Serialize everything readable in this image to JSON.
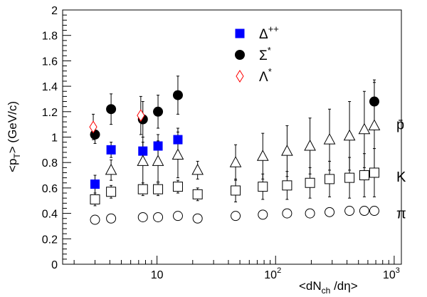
{
  "chart_data": {
    "type": "scatter",
    "xscale": "log",
    "xlim": [
      1.6,
      1150
    ],
    "ylim": [
      0,
      2
    ],
    "y_ticks": [
      0,
      0.2,
      0.4,
      0.6,
      0.8,
      1,
      1.2,
      1.4,
      1.6,
      1.8,
      2
    ],
    "y_tick_labels": [
      "0",
      "0.2",
      "0.4",
      "0.6",
      "0.8",
      "1",
      "1.2",
      "1.4",
      "1.6",
      "1.8",
      "2"
    ],
    "x_major_ticks": [
      10,
      100,
      1000
    ],
    "x_tick_label_bases": [
      "10",
      "10",
      "10"
    ],
    "x_tick_label_exps": [
      "",
      "2",
      "3"
    ],
    "xlabel": {
      "prefix": "<dN",
      "sub": "ch",
      "suffix": " /dη>"
    },
    "ylabel": {
      "prefix": "<p",
      "sub": "T",
      "suffix": "> (GeV/c)"
    },
    "grid": false,
    "legend_position": "top-center",
    "series": [
      {
        "name_base": "Δ",
        "name_sup": "++",
        "marker": "filled-square",
        "color": "#0000ff",
        "points": [
          [
            3.0,
            0.63,
            0.07
          ],
          [
            4.1,
            0.9,
            0.06
          ],
          [
            7.6,
            0.89,
            0.07
          ],
          [
            10.2,
            0.93,
            0.09
          ],
          [
            15.0,
            0.98,
            0.09
          ]
        ]
      },
      {
        "name_base": "Σ",
        "name_sup": "*",
        "marker": "filled-circle",
        "color": "#000000",
        "points": [
          [
            3.0,
            1.02,
            0.07
          ],
          [
            4.1,
            1.22,
            0.12
          ],
          [
            7.6,
            1.14,
            0.14
          ],
          [
            10.2,
            1.2,
            0.13
          ],
          [
            15.0,
            1.33,
            0.15
          ],
          [
            680,
            1.28,
            0.17
          ]
        ]
      },
      {
        "name_base": "Λ",
        "name_sup": "*",
        "marker": "open-diamond",
        "color": "#ff0000",
        "points": [
          [
            2.9,
            1.08,
            0.1
          ],
          [
            7.3,
            1.17,
            0.15
          ]
        ]
      },
      {
        "name_base": "p̄",
        "name_sup": "",
        "marker": "open-triangle",
        "color": "#000000",
        "points": [
          [
            4.1,
            0.74,
            0.08
          ],
          [
            7.6,
            0.81,
            0.19
          ],
          [
            10.2,
            0.81,
            0.16
          ],
          [
            15.0,
            0.86,
            0.18
          ],
          [
            22,
            0.74,
            0.07
          ],
          [
            46,
            0.8,
            0.14
          ],
          [
            78,
            0.85,
            0.18
          ],
          [
            125,
            0.89,
            0.2
          ],
          [
            195,
            0.93,
            0.22
          ],
          [
            285,
            0.98,
            0.24
          ],
          [
            420,
            1.01,
            0.27
          ],
          [
            560,
            1.06,
            0.3
          ],
          [
            680,
            1.09,
            0.34
          ]
        ]
      },
      {
        "name_base": "K",
        "name_sup": "",
        "marker": "open-square",
        "color": "#000000",
        "points": [
          [
            3.0,
            0.51,
            0.05
          ],
          [
            4.1,
            0.57,
            0.05
          ],
          [
            7.6,
            0.59,
            0.05
          ],
          [
            10.2,
            0.59,
            0.05
          ],
          [
            15.0,
            0.61,
            0.05
          ],
          [
            22,
            0.55,
            0.05
          ],
          [
            46,
            0.58,
            0.09
          ],
          [
            78,
            0.61,
            0.1
          ],
          [
            125,
            0.62,
            0.11
          ],
          [
            195,
            0.64,
            0.12
          ],
          [
            285,
            0.67,
            0.14
          ],
          [
            420,
            0.68,
            0.16
          ],
          [
            560,
            0.7,
            0.17
          ],
          [
            680,
            0.72,
            0.19
          ]
        ]
      },
      {
        "name_base": "π",
        "name_sup": "",
        "marker": "open-circle",
        "color": "#000000",
        "points": [
          [
            3.0,
            0.35,
            0.01
          ],
          [
            4.1,
            0.36,
            0.01
          ],
          [
            7.6,
            0.37,
            0.01
          ],
          [
            10.2,
            0.37,
            0.01
          ],
          [
            15.0,
            0.38,
            0.01
          ],
          [
            22,
            0.36,
            0.01
          ],
          [
            46,
            0.38,
            0.01
          ],
          [
            78,
            0.39,
            0.01
          ],
          [
            125,
            0.4,
            0.01
          ],
          [
            195,
            0.4,
            0.01
          ],
          [
            285,
            0.41,
            0.01
          ],
          [
            420,
            0.42,
            0.01
          ],
          [
            560,
            0.42,
            0.01
          ],
          [
            680,
            0.42,
            0.01
          ]
        ]
      }
    ],
    "legend": [
      {
        "label_base": "Δ",
        "label_sup": "++",
        "marker": "filled-square",
        "color": "#0000ff"
      },
      {
        "label_base": "Σ",
        "label_sup": "*",
        "marker": "filled-circle",
        "color": "#000000"
      },
      {
        "label_base": "Λ",
        "label_sup": "*",
        "marker": "open-diamond",
        "color": "#ff0000"
      }
    ],
    "side_labels": [
      {
        "text": "p̄",
        "y": 1.1
      },
      {
        "text": "K",
        "y": 0.69
      },
      {
        "text": "π",
        "y": 0.4
      }
    ]
  }
}
